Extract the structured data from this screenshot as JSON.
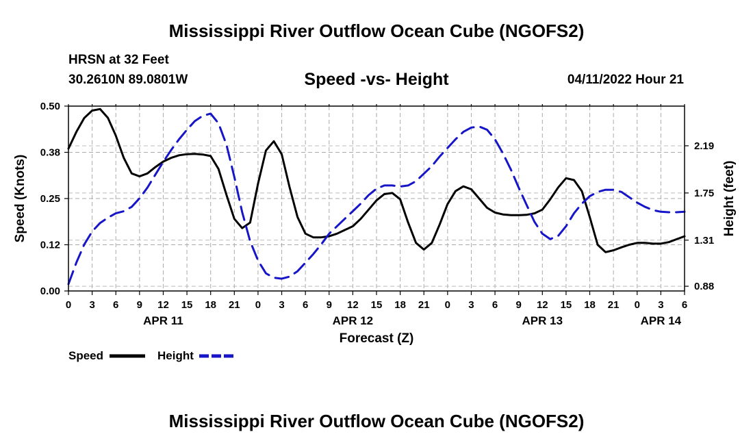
{
  "page": {
    "title": "Mississippi River Outflow Ocean Cube (NGOFS2)",
    "footer_title": "Mississippi River Outflow Ocean Cube (NGOFS2)",
    "station_name": "HRSN at 32 Feet",
    "station_coords": "30.2610N  89.0801W",
    "subtitle": "Speed -vs- Height",
    "run_datetime": "04/11/2022 Hour 21"
  },
  "chart_data": {
    "type": "line",
    "title": "Speed -vs- Height",
    "xlabel": "Forecast (Z)",
    "ylabel": "Speed (Knots)",
    "y2label": "Height (feet)",
    "x_unit": "forecast hours from 04/11 00Z",
    "xlim": [
      0,
      78
    ],
    "ylim": [
      0,
      0.5
    ],
    "y2lim": [
      0.836,
      2.56
    ],
    "x_tick_values": [
      0,
      3,
      6,
      9,
      12,
      15,
      18,
      21,
      24,
      27,
      30,
      33,
      36,
      39,
      42,
      45,
      48,
      51,
      54,
      57,
      60,
      63,
      66,
      69,
      72,
      75,
      78
    ],
    "x_tick_labels": [
      "0",
      "3",
      "6",
      "9",
      "12",
      "15",
      "18",
      "21",
      "0",
      "3",
      "6",
      "9",
      "12",
      "15",
      "18",
      "21",
      "0",
      "3",
      "6",
      "9",
      "12",
      "15",
      "18",
      "21",
      "0",
      "3",
      "6"
    ],
    "date_labels": [
      {
        "x": 12,
        "label": "APR 11"
      },
      {
        "x": 36,
        "label": "APR 12"
      },
      {
        "x": 60,
        "label": "APR 13"
      },
      {
        "x": 75,
        "label": "APR 14"
      }
    ],
    "y_ticks": [
      "0.00",
      "0.12",
      "0.25",
      "0.38",
      "0.50"
    ],
    "y_tick_values": [
      0,
      0.125,
      0.25,
      0.375,
      0.5
    ],
    "y2_ticks": [
      "0.88",
      "1.31",
      "1.75",
      "2.19"
    ],
    "y2_tick_values": [
      0.88,
      1.31,
      1.75,
      2.19
    ],
    "grid": true,
    "legend_position": "bottom-left",
    "series": [
      {
        "name": "Speed",
        "axis": "left",
        "color": "#000000",
        "dash": "solid",
        "x": [
          0,
          1,
          2,
          3,
          4,
          5,
          6,
          7,
          8,
          9,
          10,
          11,
          12,
          13,
          14,
          15,
          16,
          17,
          18,
          19,
          20,
          21,
          22,
          23,
          24,
          25,
          26,
          27,
          28,
          29,
          30,
          31,
          32,
          33,
          34,
          35,
          36,
          37,
          38,
          39,
          40,
          41,
          42,
          43,
          44,
          45,
          46,
          47,
          48,
          49,
          50,
          51,
          52,
          53,
          54,
          55,
          56,
          57,
          58,
          59,
          60,
          61,
          62,
          63,
          64,
          65,
          66,
          67,
          68,
          69,
          70,
          71,
          72,
          73,
          74,
          75,
          76,
          77,
          78
        ],
        "values": [
          0.385,
          0.43,
          0.468,
          0.488,
          0.492,
          0.468,
          0.42,
          0.36,
          0.318,
          0.31,
          0.318,
          0.335,
          0.35,
          0.36,
          0.367,
          0.37,
          0.371,
          0.369,
          0.365,
          0.33,
          0.26,
          0.195,
          0.17,
          0.185,
          0.29,
          0.38,
          0.405,
          0.37,
          0.28,
          0.2,
          0.155,
          0.145,
          0.145,
          0.148,
          0.155,
          0.165,
          0.175,
          0.195,
          0.22,
          0.245,
          0.262,
          0.265,
          0.248,
          0.185,
          0.13,
          0.112,
          0.13,
          0.18,
          0.235,
          0.27,
          0.283,
          0.275,
          0.25,
          0.225,
          0.212,
          0.207,
          0.205,
          0.205,
          0.206,
          0.21,
          0.22,
          0.248,
          0.28,
          0.305,
          0.3,
          0.27,
          0.2,
          0.125,
          0.105,
          0.11,
          0.118,
          0.125,
          0.13,
          0.13,
          0.128,
          0.128,
          0.132,
          0.14,
          0.148
        ]
      },
      {
        "name": "Height",
        "axis": "right",
        "color": "#1616c8",
        "dash": "dashed",
        "x": [
          0,
          1,
          2,
          3,
          4,
          5,
          6,
          7,
          8,
          9,
          10,
          11,
          12,
          13,
          14,
          15,
          16,
          17,
          18,
          19,
          20,
          21,
          22,
          23,
          24,
          25,
          26,
          27,
          28,
          29,
          30,
          31,
          32,
          33,
          34,
          35,
          36,
          37,
          38,
          39,
          40,
          41,
          42,
          43,
          44,
          45,
          46,
          47,
          48,
          49,
          50,
          51,
          52,
          53,
          54,
          55,
          56,
          57,
          58,
          59,
          60,
          61,
          62,
          63,
          64,
          65,
          66,
          67,
          68,
          69,
          70,
          71,
          72,
          73,
          74,
          75,
          76,
          77,
          78
        ],
        "values": [
          0.9,
          1.1,
          1.27,
          1.39,
          1.47,
          1.52,
          1.56,
          1.58,
          1.62,
          1.7,
          1.8,
          1.92,
          2.04,
          2.15,
          2.25,
          2.34,
          2.42,
          2.47,
          2.49,
          2.4,
          2.2,
          1.9,
          1.57,
          1.3,
          1.12,
          1.0,
          0.96,
          0.95,
          0.97,
          1.02,
          1.1,
          1.18,
          1.27,
          1.37,
          1.44,
          1.51,
          1.58,
          1.65,
          1.73,
          1.79,
          1.82,
          1.82,
          1.81,
          1.82,
          1.86,
          1.93,
          2.0,
          2.09,
          2.17,
          2.25,
          2.32,
          2.36,
          2.37,
          2.34,
          2.25,
          2.12,
          1.97,
          1.8,
          1.64,
          1.48,
          1.37,
          1.32,
          1.35,
          1.44,
          1.56,
          1.65,
          1.72,
          1.76,
          1.78,
          1.78,
          1.76,
          1.71,
          1.66,
          1.62,
          1.59,
          1.575,
          1.57,
          1.57,
          1.575
        ]
      }
    ]
  }
}
